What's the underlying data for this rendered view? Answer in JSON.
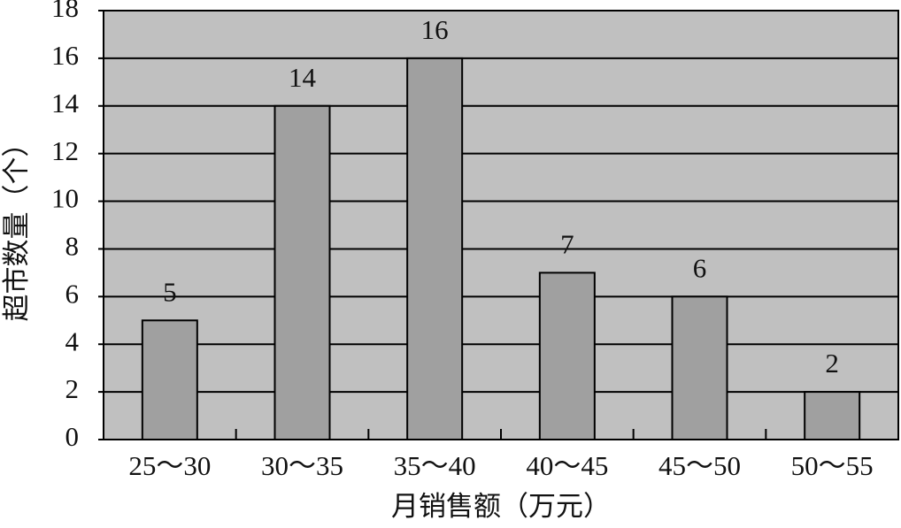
{
  "chart_data": {
    "type": "bar",
    "x_label": "月销售额（万元）",
    "y_label": "超市数量（个）",
    "categories": [
      "25～30",
      "30～35",
      "35～40",
      "40～45",
      "45～50",
      "50～55"
    ],
    "values": [
      5,
      14,
      16,
      7,
      6,
      2
    ],
    "color": "#a0a0a0",
    "plot_background": "#c0c0c0",
    "ylim": [
      0,
      18
    ],
    "yticks": [
      0,
      2,
      4,
      6,
      8,
      10,
      12,
      14,
      16,
      18
    ],
    "grid": true,
    "value_labels_shown": true
  }
}
